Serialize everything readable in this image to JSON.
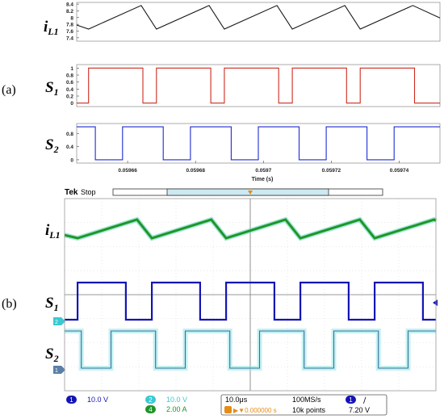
{
  "panel_a": {
    "tag": "(a)",
    "labels": {
      "i_main": "i",
      "i_sub": "L1",
      "s1_main": "S",
      "s1_sub": "1",
      "s2_main": "S",
      "s2_sub": "2"
    },
    "xlabel": "Time (s)"
  },
  "panel_b": {
    "tag": "(b)",
    "labels": {
      "i_main": "i",
      "i_sub": "L1",
      "s1_main": "S",
      "s1_sub": "1",
      "s2_main": "S",
      "s2_sub": "2"
    },
    "header": {
      "brand": "Tek",
      "state": "Stop",
      "trigger_marker": "T"
    },
    "status": {
      "ch1_num": "1",
      "ch1_scale": "10.0 V",
      "ch2_num": "2",
      "ch2_scale": "10.0 V",
      "ch4_num": "4",
      "ch4_scale": "2.00 A",
      "timebase": "10.0μs",
      "trig_offset": "▶▼0.000000 s",
      "sample_rate": "100MS/s",
      "record": "10k points",
      "trig_src": "1",
      "trig_slope": "∕",
      "trig_level": "7.20 V"
    },
    "colors": {
      "ch1": "#1414b4",
      "ch2": "#3cc8d2",
      "ch4": "#1e9628",
      "trigger": "#e68c14"
    }
  },
  "chart_data": [
    {
      "type": "line",
      "id": "iL1",
      "xlabel": "Time (s)",
      "xlim": [
        0.059645,
        0.059752
      ],
      "ylim": [
        7.3,
        8.45
      ],
      "yticks": [
        7.4,
        7.6,
        7.8,
        8,
        8.2,
        8.4
      ],
      "ytick_labels": [
        "7.4",
        "7.6",
        "7.8",
        "8",
        "8.2",
        "8.4"
      ],
      "color": "#1a1a1a",
      "x": [
        0.059645,
        0.0596485,
        0.059664,
        0.0596685,
        0.059684,
        0.0596885,
        0.059704,
        0.0597085,
        0.059724,
        0.0597285,
        0.059744,
        0.059752
      ],
      "y": [
        7.78,
        7.66,
        8.36,
        7.66,
        8.36,
        7.66,
        8.36,
        7.66,
        8.36,
        7.66,
        8.36,
        7.99
      ]
    },
    {
      "type": "line",
      "id": "S1",
      "ylim": [
        -0.1,
        1.1
      ],
      "yticks": [
        0,
        0.2,
        0.4,
        0.6,
        0.8,
        1
      ],
      "ytick_labels": [
        "0",
        "0.2",
        "0.4",
        "0.6",
        "0.8",
        "1"
      ],
      "color": "#cc2a1e",
      "x": [
        0.059645,
        0.0596485,
        0.0596485,
        0.0596645,
        0.0596645,
        0.0596685,
        0.0596685,
        0.0596845,
        0.0596845,
        0.0596885,
        0.0596885,
        0.0597045,
        0.0597045,
        0.0597085,
        0.0597085,
        0.0597245,
        0.0597245,
        0.0597285,
        0.0597285,
        0.0597445,
        0.0597445,
        0.059752
      ],
      "y": [
        0,
        0,
        1,
        1,
        0,
        0,
        1,
        1,
        0,
        0,
        1,
        1,
        0,
        0,
        1,
        1,
        0,
        0,
        1,
        1,
        0,
        0
      ]
    },
    {
      "type": "line",
      "id": "S2",
      "ylim": [
        -0.1,
        1.1
      ],
      "yticks": [
        0,
        0.4,
        0.8
      ],
      "ytick_labels": [
        "0",
        "0.4",
        "0.8"
      ],
      "xticks": [
        0.05966,
        0.05968,
        0.0597,
        0.05972,
        0.05974
      ],
      "xtick_labels": [
        "0.05966",
        "0.05968",
        "0.0597",
        "0.05972",
        "0.05974"
      ],
      "color": "#1e2ad2",
      "x": [
        0.059645,
        0.0596505,
        0.0596505,
        0.0596585,
        0.0596585,
        0.0596705,
        0.0596705,
        0.0596785,
        0.0596785,
        0.0596905,
        0.0596905,
        0.0596985,
        0.0596985,
        0.0597105,
        0.0597105,
        0.0597185,
        0.0597185,
        0.0597305,
        0.0597305,
        0.0597385,
        0.0597385,
        0.059752
      ],
      "y": [
        1,
        1,
        0,
        0,
        1,
        1,
        0,
        0,
        1,
        1,
        0,
        0,
        1,
        1,
        0,
        0,
        1,
        1,
        0,
        0,
        1,
        1
      ]
    },
    {
      "type": "line",
      "id": "scope",
      "x_unit": "us",
      "xlim": [
        0,
        100
      ],
      "divisions": 10,
      "series": [
        {
          "channel": "ch4",
          "color": "#1e9628",
          "unit": "A",
          "x": [
            0,
            3.5,
            19.5,
            23.5,
            39.5,
            43.5,
            59.5,
            63.5,
            79.5,
            83.5,
            99.5,
            100
          ],
          "y": [
            4.3,
            4.0,
            5.8,
            4.0,
            5.8,
            4.0,
            5.8,
            4.0,
            5.8,
            4.0,
            5.8,
            5.7
          ]
        },
        {
          "channel": "ch1",
          "color": "#1414b4",
          "unit": "V",
          "x": [
            0,
            3.5,
            3.5,
            16.5,
            16.5,
            23.5,
            23.5,
            36.5,
            36.5,
            43.5,
            43.5,
            56.5,
            56.5,
            63.5,
            63.5,
            76.5,
            76.5,
            83.5,
            83.5,
            96.5,
            96.5,
            100
          ],
          "y": [
            -2,
            -2,
            20,
            20,
            -2,
            -2,
            20,
            20,
            -2,
            -2,
            20,
            20,
            -2,
            -2,
            20,
            20,
            -2,
            -2,
            20,
            20,
            -2,
            -2
          ]
        },
        {
          "channel": "ch2",
          "color": "#3cc8d2",
          "unit": "V",
          "x": [
            0,
            4.5,
            4.5,
            12.5,
            12.5,
            24.5,
            24.5,
            32.5,
            32.5,
            44.5,
            44.5,
            52.5,
            52.5,
            64.5,
            64.5,
            72.5,
            72.5,
            84.5,
            84.5,
            92.5,
            92.5,
            100
          ],
          "y": [
            20,
            20,
            -2,
            -2,
            20,
            20,
            -2,
            -2,
            20,
            20,
            -2,
            -2,
            20,
            20,
            -2,
            -2,
            20,
            20,
            -2,
            -2,
            20,
            20
          ]
        }
      ]
    }
  ]
}
